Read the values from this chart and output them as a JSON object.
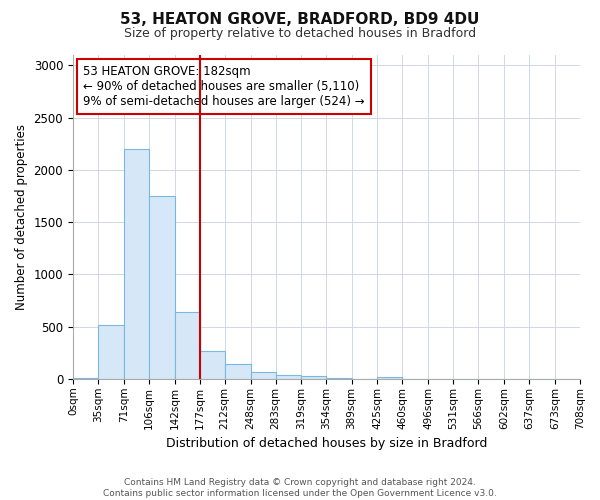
{
  "title1": "53, HEATON GROVE, BRADFORD, BD9 4DU",
  "title2": "Size of property relative to detached houses in Bradford",
  "xlabel": "Distribution of detached houses by size in Bradford",
  "ylabel": "Number of detached properties",
  "bin_labels": [
    "0sqm",
    "35sqm",
    "71sqm",
    "106sqm",
    "142sqm",
    "177sqm",
    "212sqm",
    "248sqm",
    "283sqm",
    "319sqm",
    "354sqm",
    "389sqm",
    "425sqm",
    "460sqm",
    "496sqm",
    "531sqm",
    "566sqm",
    "602sqm",
    "637sqm",
    "673sqm",
    "708sqm"
  ],
  "bar_values": [
    10,
    520,
    2200,
    1750,
    640,
    270,
    140,
    70,
    35,
    30,
    5,
    0,
    15,
    0,
    0,
    0,
    0,
    0,
    0,
    0
  ],
  "bar_color": "#d6e8f7",
  "bar_edge_color": "#7ab8e0",
  "vline_color": "#cc0000",
  "annotation_text": "53 HEATON GROVE: 182sqm\n← 90% of detached houses are smaller (5,110)\n9% of semi-detached houses are larger (524) →",
  "annotation_box_color": "white",
  "annotation_box_edge": "#cc0000",
  "ylim": [
    0,
    3100
  ],
  "yticks": [
    0,
    500,
    1000,
    1500,
    2000,
    2500,
    3000
  ],
  "footer_text": "Contains HM Land Registry data © Crown copyright and database right 2024.\nContains public sector information licensed under the Open Government Licence v3.0.",
  "bg_color": "#ffffff",
  "plot_bg_color": "#ffffff",
  "grid_color": "#d0d8e8"
}
